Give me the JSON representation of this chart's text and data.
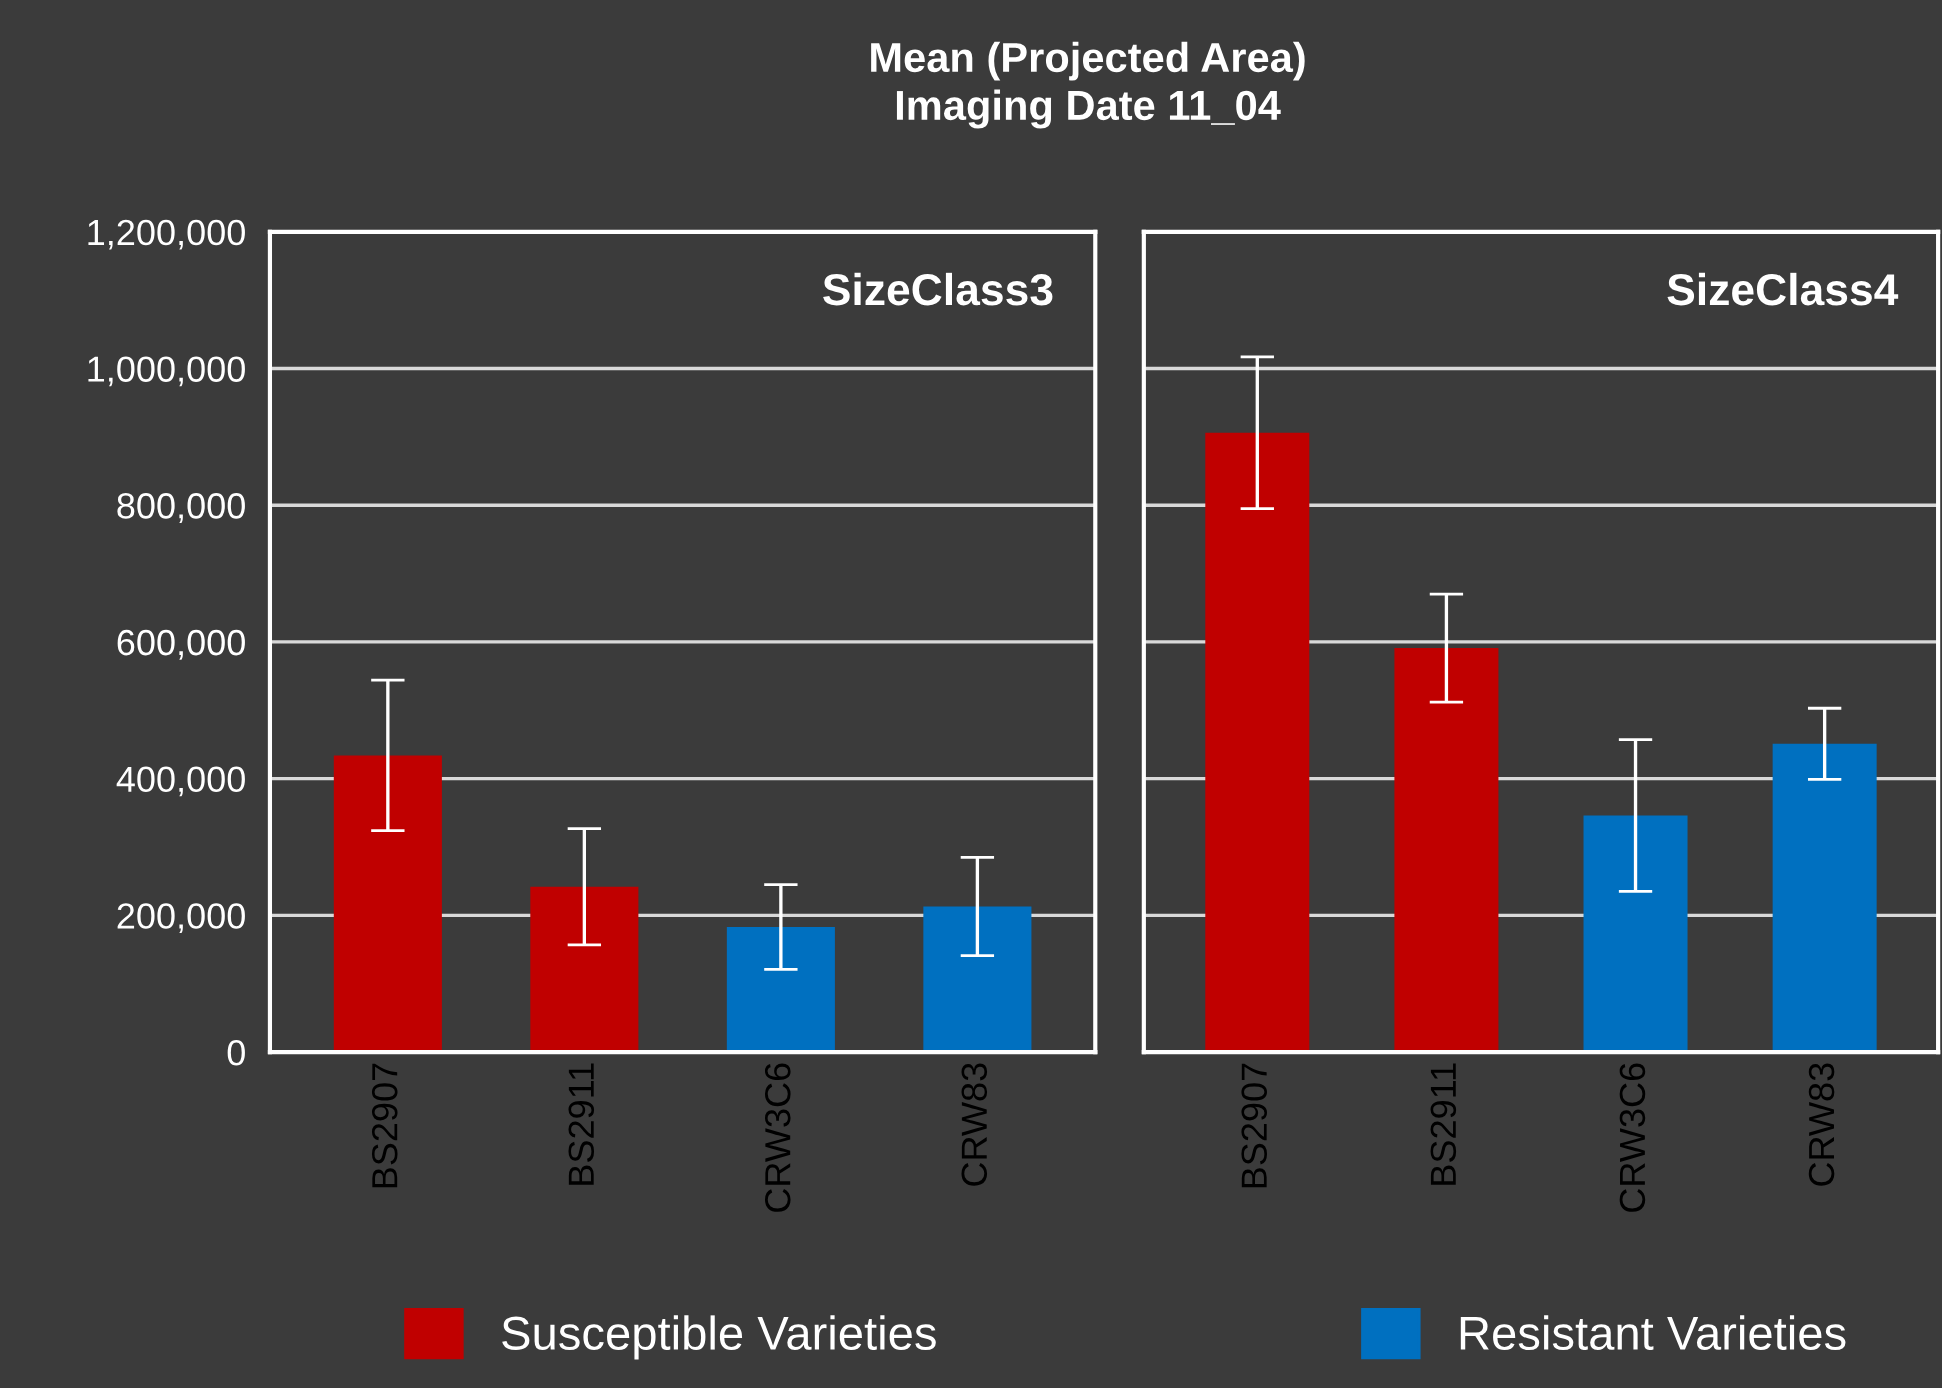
{
  "chart_data": [
    {
      "type": "bar",
      "title": "Mean (Projected Area)\nImaging Date 11_04",
      "annotations": [
        "SizeClass3"
      ],
      "categories": [
        "BS2907",
        "BS2911",
        "CRW3C6",
        "CRW83"
      ],
      "series": [
        {
          "name": "Susceptible Varieties",
          "color": "#c00000",
          "values": [
            434000,
            242000,
            null,
            null
          ],
          "errors": [
            110000,
            85000,
            null,
            null
          ]
        },
        {
          "name": "Resistant Varieties",
          "color": "#0070c0",
          "values": [
            null,
            null,
            183000,
            213000
          ],
          "errors": [
            null,
            null,
            62000,
            72000
          ]
        }
      ],
      "ylim": [
        0,
        1200000
      ],
      "yticks": [
        {
          "value": 0,
          "label": "0"
        },
        {
          "value": 200000,
          "label": "200,000"
        },
        {
          "value": 400000,
          "label": "400,000"
        },
        {
          "value": 600000,
          "label": "600,000"
        },
        {
          "value": 800000,
          "label": "800,000"
        },
        {
          "value": 1000000,
          "label": "1,000,000"
        },
        {
          "value": 1200000,
          "label": "1,200,000"
        }
      ],
      "grid": "y",
      "legend": "bottom"
    },
    {
      "type": "bar",
      "annotations": [
        "SizeClass4"
      ],
      "categories": [
        "BS2907",
        "BS2911",
        "CRW3C6",
        "CRW83"
      ],
      "series": [
        {
          "color": "#c00000",
          "values": [
            906000,
            591000,
            null,
            null
          ],
          "errors": [
            111000,
            79000,
            null,
            null
          ]
        },
        {
          "color": "#0070c0",
          "values": [
            null,
            null,
            346000,
            451000
          ],
          "errors": [
            null,
            null,
            111000,
            52000
          ]
        }
      ],
      "ylim": [
        0,
        1200000
      ],
      "yticks": [
        0,
        200000,
        400000,
        600000,
        800000,
        1000000,
        1200000
      ],
      "grid": "y",
      "tick_labels": "x"
    }
  ]
}
